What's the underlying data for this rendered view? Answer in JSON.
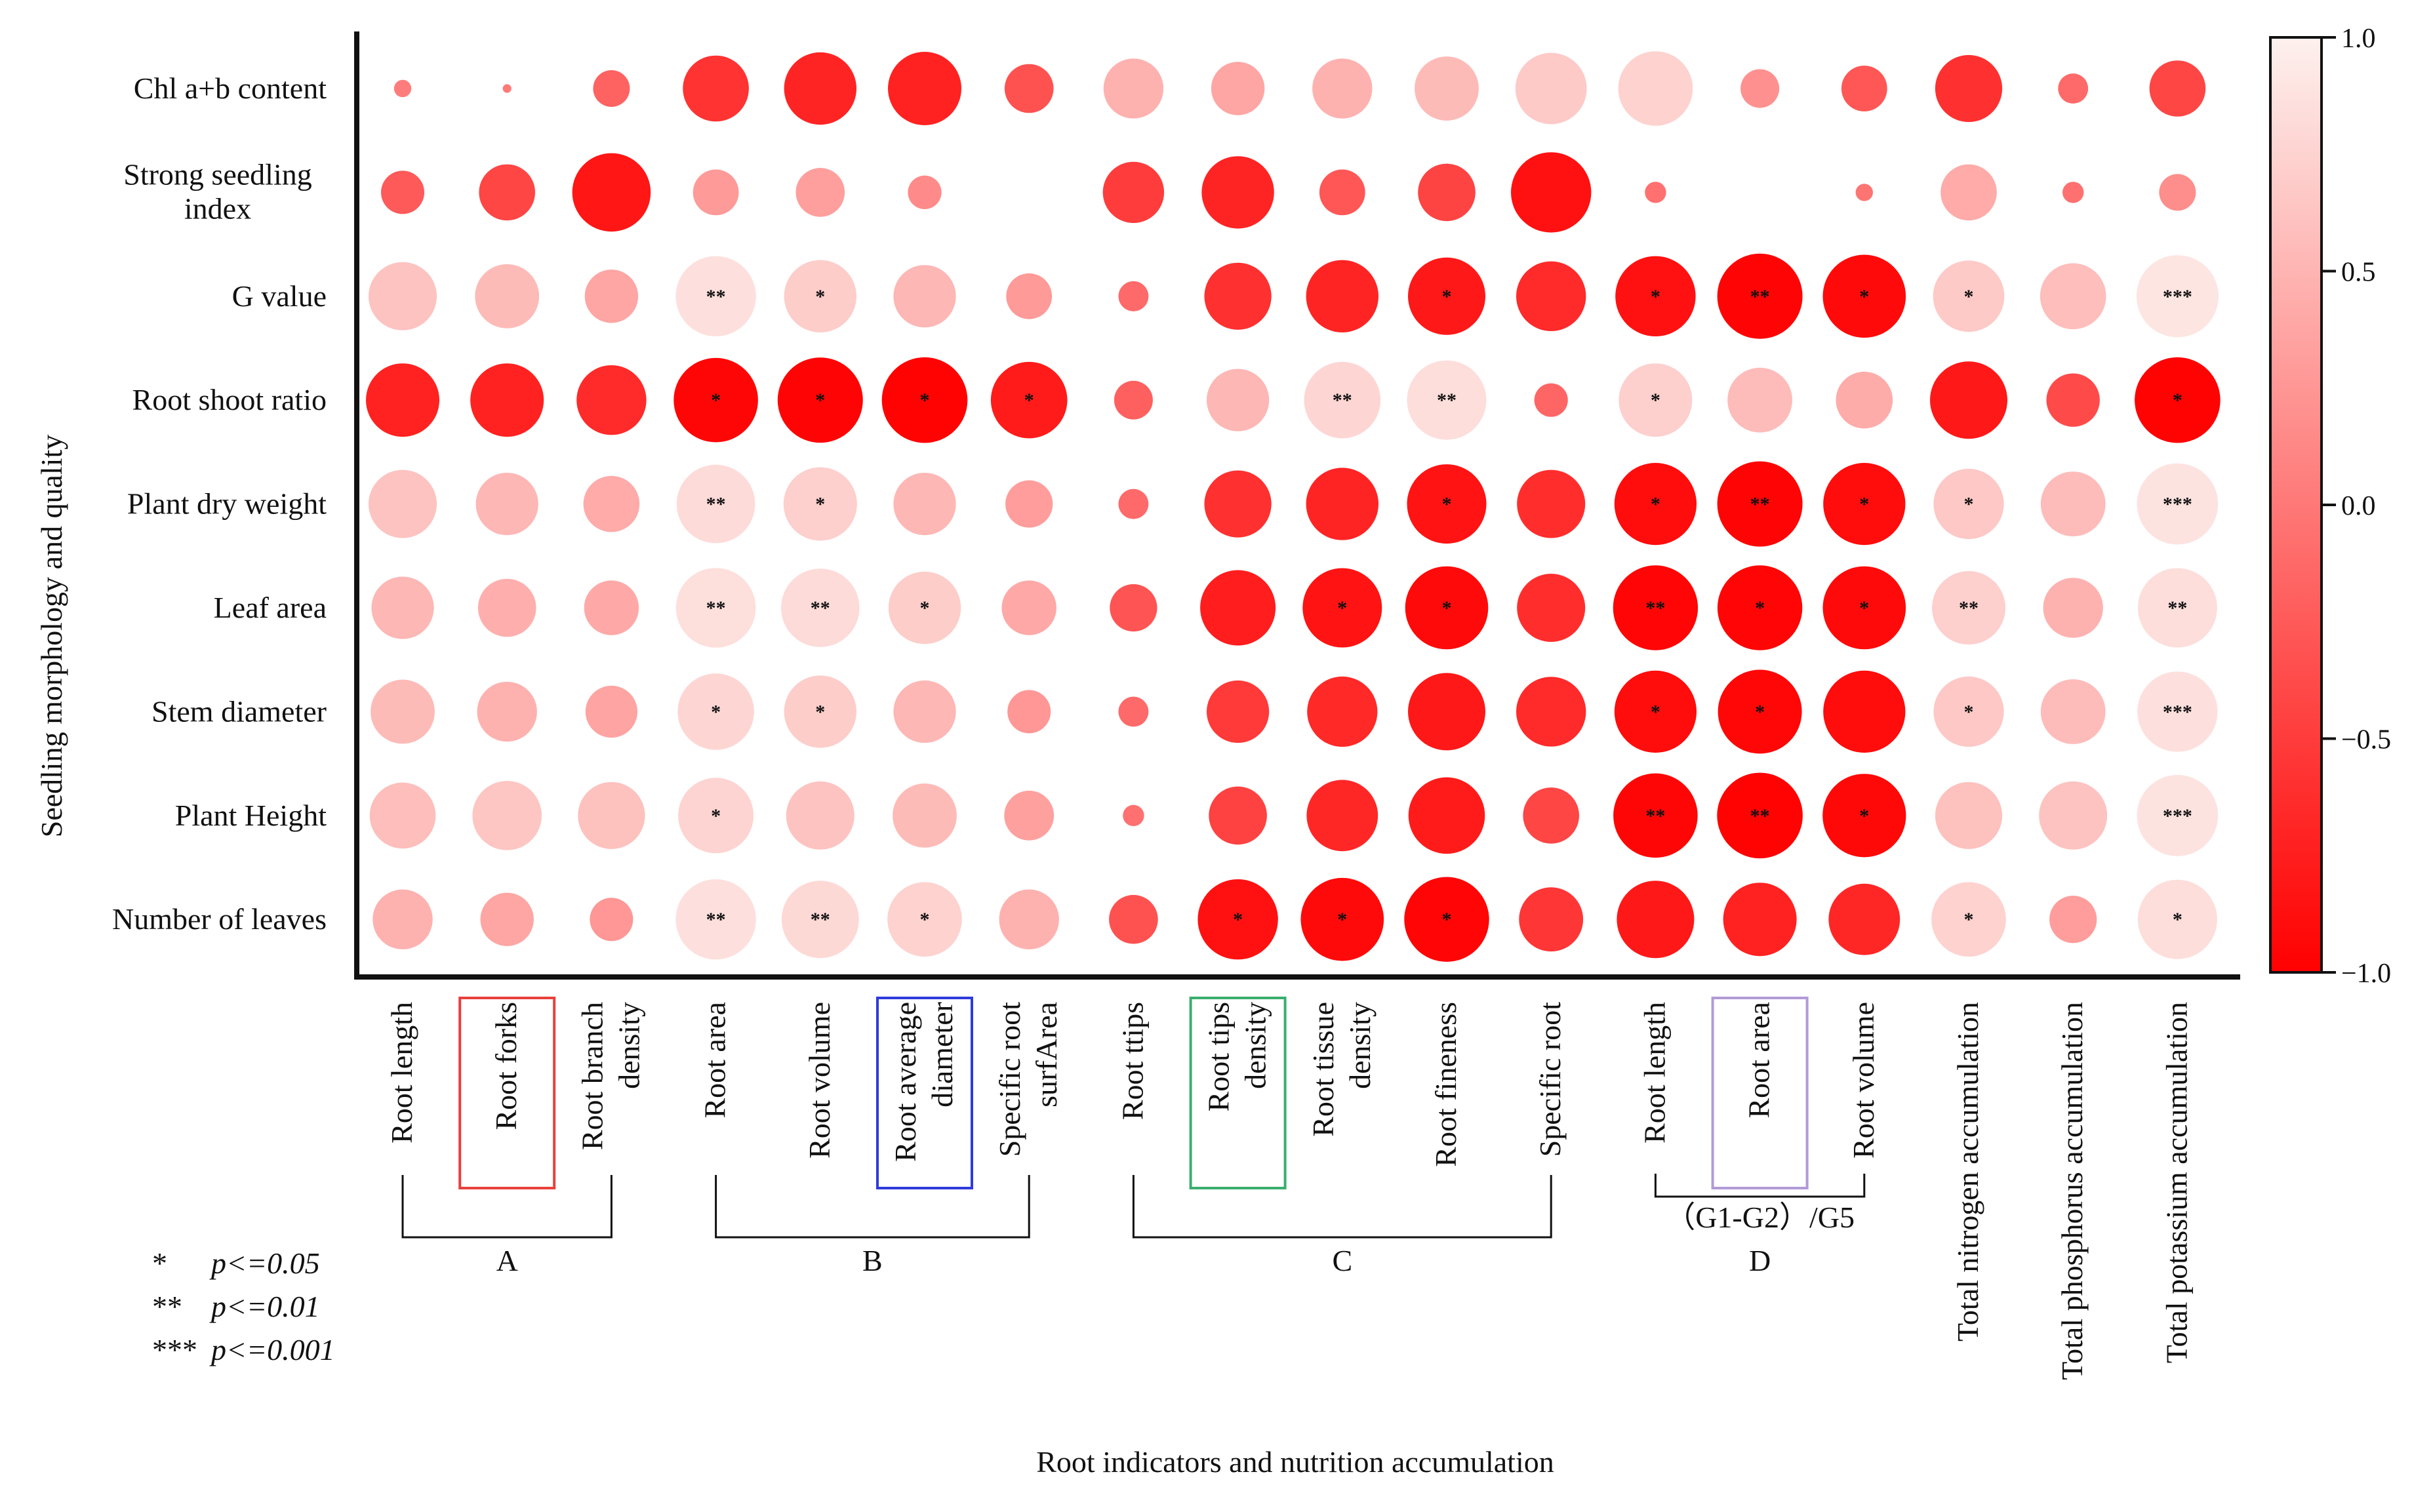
{
  "chart_data": {
    "type": "heatmap",
    "subtype": "correlation bubble matrix",
    "ylabel": "Seedling morphology and quality",
    "xlabel": "Root indicators and nutrition accumulation",
    "rows": [
      "Chl a+b content",
      "Strong seedling index",
      "G value",
      "Root shoot ratio",
      "Plant dry weight",
      "Leaf area",
      "Stem diameter",
      "Plant Height",
      "Number of leaves"
    ],
    "columns": [
      {
        "label": "Root length",
        "lines": [
          "Root length"
        ]
      },
      {
        "label": "Root forks",
        "lines": [
          "Root forks"
        ]
      },
      {
        "label": "Root branch density",
        "lines": [
          "Root branch",
          "density"
        ]
      },
      {
        "label": "Root area",
        "lines": [
          "Root area"
        ]
      },
      {
        "label": "Root volume",
        "lines": [
          "Root volume"
        ]
      },
      {
        "label": "Root average diameter",
        "lines": [
          "Root average",
          "diameter"
        ]
      },
      {
        "label": "Specific root surfArea",
        "lines": [
          "Specific root",
          "surfArea"
        ]
      },
      {
        "label": "Root ttips",
        "lines": [
          "Root ttips"
        ]
      },
      {
        "label": "Root tips density",
        "lines": [
          "Root tips",
          "density"
        ]
      },
      {
        "label": "Root tissue density",
        "lines": [
          "Root tissue",
          "density"
        ]
      },
      {
        "label": "Root fineness",
        "lines": [
          "Root fineness"
        ]
      },
      {
        "label": "Specific root",
        "lines": [
          "Specific root"
        ]
      },
      {
        "label": "Root length",
        "lines": [
          "Root length"
        ]
      },
      {
        "label": "Root area",
        "lines": [
          "Root area"
        ]
      },
      {
        "label": "Root volume",
        "lines": [
          "Root volume"
        ]
      },
      {
        "label": "Total nitrogen accumulation",
        "lines": [
          "Total nitrogen accumulation"
        ]
      },
      {
        "label": "Total phosphorus accumulation",
        "lines": [
          "Total phosphorus accumulation"
        ]
      },
      {
        "label": "Total potassium accumulation",
        "lines": [
          "Total potassium accumulation"
        ]
      }
    ],
    "boxed_columns": [
      {
        "column": 1,
        "color": "#e8413c"
      },
      {
        "column": 5,
        "color": "#2f3bdc"
      },
      {
        "column": 8,
        "color": "#3aae6e"
      },
      {
        "column": 13,
        "color": "#b29ad6"
      }
    ],
    "groups": [
      {
        "label": "A",
        "from": 0,
        "to": 2
      },
      {
        "label": "B",
        "from": 3,
        "to": 6
      },
      {
        "label": "C",
        "from": 7,
        "to": 11
      },
      {
        "label": "D",
        "from": 12,
        "to": 14,
        "sublabel": "（G1-G2）/G5"
      }
    ],
    "values": [
      [
        0.04,
        0.01,
        -0.18,
        -0.58,
        -0.7,
        -0.72,
        -0.32,
        0.48,
        0.38,
        0.48,
        0.55,
        0.68,
        0.74,
        0.2,
        -0.28,
        -0.6,
        -0.12,
        -0.42
      ],
      [
        -0.25,
        -0.42,
        -0.82,
        0.28,
        0.32,
        0.15,
        0.0,
        -0.5,
        -0.7,
        -0.28,
        -0.44,
        -0.86,
        -0.06,
        0.0,
        -0.04,
        0.42,
        -0.06,
        0.18
      ],
      [
        0.62,
        0.55,
        0.38,
        0.86,
        0.7,
        0.52,
        0.28,
        -0.12,
        -0.6,
        -0.7,
        -0.8,
        -0.65,
        -0.86,
        -0.97,
        -0.92,
        0.68,
        0.58,
        0.9
      ],
      [
        -0.72,
        -0.72,
        -0.65,
        -0.95,
        -0.97,
        -0.98,
        -0.78,
        -0.2,
        0.52,
        0.78,
        0.84,
        -0.15,
        0.72,
        0.56,
        0.43,
        -0.8,
        -0.38,
        -0.98
      ],
      [
        0.62,
        0.52,
        0.42,
        0.82,
        0.72,
        0.52,
        0.3,
        -0.12,
        -0.6,
        -0.7,
        -0.84,
        -0.62,
        -0.9,
        -0.97,
        -0.9,
        0.66,
        0.56,
        0.88
      ],
      [
        0.52,
        0.45,
        0.4,
        0.85,
        0.82,
        0.7,
        0.4,
        -0.3,
        -0.76,
        -0.84,
        -0.92,
        -0.62,
        -0.96,
        -0.96,
        -0.92,
        0.72,
        0.48,
        0.84
      ],
      [
        0.55,
        0.48,
        0.36,
        0.78,
        0.7,
        0.52,
        0.25,
        -0.12,
        -0.52,
        -0.66,
        -0.8,
        -0.65,
        -0.9,
        -0.94,
        -0.9,
        0.66,
        0.56,
        0.86
      ],
      [
        0.58,
        0.64,
        0.6,
        0.76,
        0.62,
        0.55,
        0.33,
        -0.06,
        -0.45,
        -0.68,
        -0.78,
        -0.42,
        -0.95,
        -0.98,
        -0.93,
        0.6,
        0.62,
        0.88
      ],
      [
        0.48,
        0.38,
        0.25,
        0.86,
        0.8,
        0.74,
        0.48,
        -0.32,
        -0.86,
        -0.92,
        -0.96,
        -0.55,
        -0.8,
        -0.72,
        -0.68,
        0.74,
        0.3,
        0.84
      ]
    ],
    "significance": [
      [
        "",
        "",
        "",
        "",
        "",
        "",
        "",
        "",
        "",
        "",
        "",
        "",
        "",
        "",
        "",
        "",
        "",
        ""
      ],
      [
        "",
        "",
        "",
        "",
        "",
        "",
        "",
        "",
        "",
        "",
        "",
        "",
        "",
        "",
        "",
        "",
        "",
        ""
      ],
      [
        "",
        "",
        "",
        "**",
        "*",
        "",
        "",
        "",
        "",
        "",
        "*",
        "",
        "*",
        "**",
        "*",
        "*",
        "",
        "***"
      ],
      [
        "",
        "",
        "",
        "*",
        "*",
        "*",
        "*",
        "",
        "",
        "**",
        "**",
        "",
        "*",
        "",
        "",
        "",
        "",
        "*"
      ],
      [
        "",
        "",
        "",
        "**",
        "*",
        "",
        "",
        "",
        "",
        "",
        "*",
        "",
        "*",
        "**",
        "*",
        "*",
        "",
        "***"
      ],
      [
        "",
        "",
        "",
        "**",
        "**",
        "*",
        "",
        "",
        "",
        "*",
        "*",
        "",
        "**",
        "*",
        "*",
        "**",
        "",
        "**"
      ],
      [
        "",
        "",
        "",
        "*",
        "*",
        "",
        "",
        "",
        "",
        "",
        "",
        "",
        "*",
        "*",
        "",
        "*",
        "",
        "***"
      ],
      [
        "",
        "",
        "",
        "*",
        "",
        "",
        "",
        "",
        "",
        "",
        "",
        "",
        "**",
        "**",
        "*",
        "",
        "",
        "***"
      ],
      [
        "",
        "",
        "",
        "**",
        "**",
        "*",
        "",
        "",
        "*",
        "*",
        "*",
        "",
        "",
        "",
        "",
        "*",
        "",
        "*"
      ]
    ],
    "colorbar": {
      "min": -1.0,
      "max": 1.0,
      "ticks": [
        "1.0",
        "0.5",
        "0.0",
        "−0.5",
        "−1.0"
      ],
      "low_color": "#ff0000",
      "high_color": "#fdf1ee"
    },
    "significance_legend": [
      {
        "mark": "*",
        "text": "p<=0.05"
      },
      {
        "mark": "**",
        "text": "p<=0.01"
      },
      {
        "mark": "***",
        "text": "p<=0.001"
      }
    ]
  }
}
